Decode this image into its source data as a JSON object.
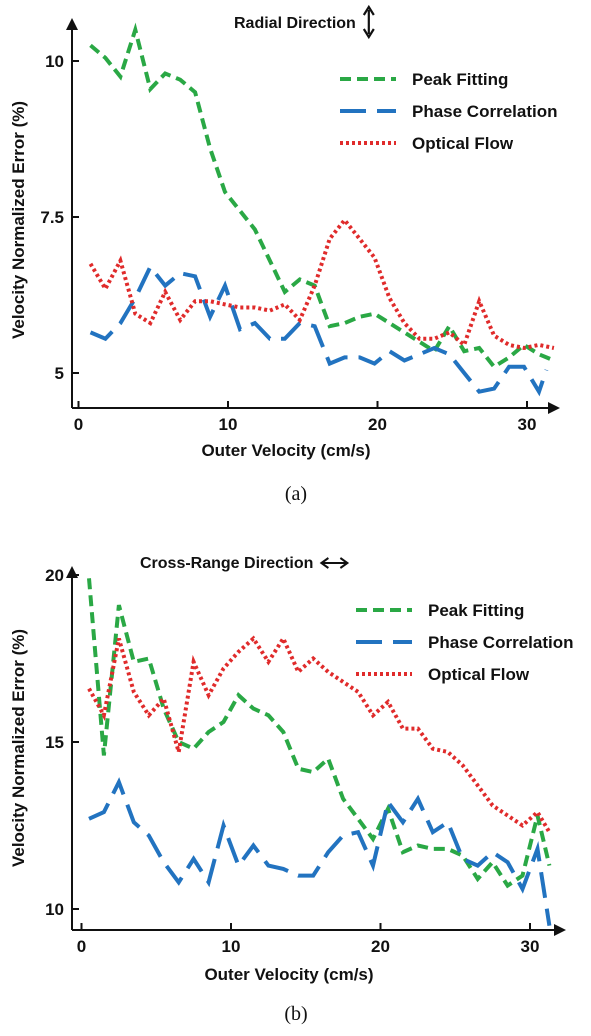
{
  "chart_data": [
    {
      "type": "line",
      "caption": "(a)",
      "title": "Radial Direction",
      "title_arrow": "vertical-double-arrow",
      "xlabel": "Outer Velocity (cm/s)",
      "ylabel": "Velocity Normalized Error (%)",
      "xticks": [
        0,
        10,
        20,
        30
      ],
      "yticks": [
        5,
        7.5,
        10
      ],
      "xtick_labels": [
        "0",
        "10",
        "20",
        "30"
      ],
      "ytick_labels": [
        "5",
        "7.5",
        "10"
      ],
      "xlim": [
        0,
        33.5
      ],
      "ylim": [
        4.3,
        11.0
      ],
      "legend_position": "top-right",
      "grid": false,
      "series": [
        {
          "name": "Peak Fitting",
          "color": "#2aa845",
          "style": "dashed",
          "x": [
            0.8,
            1.8,
            2.8,
            3.8,
            4.8,
            5.8,
            6.8,
            7.8,
            8.8,
            9.8,
            10.8,
            11.8,
            12.8,
            13.8,
            14.8,
            15.8,
            16.8,
            17.8,
            18.8,
            19.8,
            20.8,
            21.8,
            22.8,
            23.8,
            24.8,
            25.8,
            26.8,
            27.8,
            28.8,
            29.8,
            30.8,
            31.8
          ],
          "values": [
            10.25,
            10.05,
            9.75,
            10.5,
            9.55,
            9.8,
            9.7,
            9.5,
            8.6,
            7.9,
            7.6,
            7.3,
            6.8,
            6.3,
            6.5,
            6.4,
            5.75,
            5.8,
            5.9,
            5.95,
            5.8,
            5.65,
            5.5,
            5.35,
            5.75,
            5.35,
            5.4,
            5.1,
            5.25,
            5.45,
            5.3,
            5.2
          ]
        },
        {
          "name": "Phase Correlation",
          "color": "#2273c0",
          "style": "longdash",
          "x": [
            0.8,
            1.8,
            2.8,
            3.8,
            4.8,
            5.8,
            6.8,
            7.8,
            8.8,
            9.8,
            10.8,
            11.8,
            12.8,
            13.8,
            14.8,
            15.8,
            16.8,
            17.8,
            18.8,
            19.8,
            20.8,
            21.8,
            22.8,
            23.8,
            24.8,
            25.8,
            26.8,
            27.8,
            28.8,
            29.8,
            30.8,
            31.3
          ],
          "values": [
            5.65,
            5.55,
            5.8,
            6.2,
            6.7,
            6.4,
            6.6,
            6.55,
            5.9,
            6.4,
            5.7,
            5.8,
            5.55,
            5.55,
            5.8,
            5.75,
            5.15,
            5.25,
            5.25,
            5.15,
            5.35,
            5.2,
            5.3,
            5.4,
            5.3,
            5.0,
            4.7,
            4.75,
            5.1,
            5.1,
            4.7,
            5.05
          ]
        },
        {
          "name": "Optical Flow",
          "color": "#e02b2b",
          "style": "dotted",
          "x": [
            0.8,
            1.8,
            2.8,
            3.8,
            4.8,
            5.8,
            6.8,
            7.8,
            8.8,
            9.8,
            10.8,
            11.8,
            12.8,
            13.8,
            14.8,
            15.8,
            16.8,
            17.8,
            18.8,
            19.8,
            20.8,
            21.8,
            22.8,
            23.8,
            24.8,
            25.8,
            26.8,
            27.8,
            28.8,
            29.8,
            30.8,
            31.8
          ],
          "values": [
            6.75,
            6.35,
            6.8,
            5.95,
            5.8,
            6.3,
            5.85,
            6.15,
            6.15,
            6.1,
            6.05,
            6.05,
            6.0,
            6.1,
            5.85,
            6.4,
            7.15,
            7.45,
            7.15,
            6.85,
            6.2,
            5.8,
            5.55,
            5.55,
            5.65,
            5.45,
            6.15,
            5.6,
            5.45,
            5.4,
            5.45,
            5.4
          ]
        }
      ]
    },
    {
      "type": "line",
      "caption": "(b)",
      "title": "Cross-Range Direction",
      "title_arrow": "horizontal-double-arrow",
      "xlabel": "Outer Velocity (cm/s)",
      "ylabel": "Velocity Normalized Error (%)",
      "xticks": [
        0,
        10,
        20,
        30
      ],
      "yticks": [
        10,
        15,
        20
      ],
      "xtick_labels": [
        "0",
        "10",
        "20",
        "30"
      ],
      "ytick_labels": [
        "10",
        "15",
        "20"
      ],
      "xlim": [
        -0.5,
        32.5
      ],
      "ylim": [
        9.0,
        20.5
      ],
      "legend_position": "top-right",
      "grid": false,
      "series": [
        {
          "name": "Peak Fitting",
          "color": "#2aa845",
          "style": "dashed",
          "x": [
            0.5,
            1.5,
            2.5,
            3.5,
            4.5,
            5.5,
            6.5,
            7.5,
            8.5,
            9.5,
            10.5,
            11.5,
            12.5,
            13.5,
            14.5,
            15.5,
            16.5,
            17.5,
            18.5,
            19.5,
            20.5,
            21.5,
            22.5,
            23.5,
            24.5,
            25.5,
            26.5,
            27.5,
            28.5,
            29.5,
            30.5,
            31.3
          ],
          "values": [
            19.9,
            14.6,
            19.1,
            17.4,
            17.5,
            16.0,
            15.0,
            14.8,
            15.3,
            15.6,
            16.4,
            16.0,
            15.8,
            15.3,
            14.2,
            14.1,
            14.5,
            13.3,
            12.7,
            12.1,
            13.0,
            11.7,
            11.9,
            11.8,
            11.8,
            11.6,
            10.9,
            11.4,
            10.7,
            11.0,
            12.8,
            11.3
          ]
        },
        {
          "name": "Phase Correlation",
          "color": "#2273c0",
          "style": "longdash",
          "x": [
            0.5,
            1.5,
            2.5,
            3.5,
            4.5,
            5.5,
            6.5,
            7.5,
            8.5,
            9.5,
            10.5,
            11.5,
            12.5,
            13.5,
            14.5,
            15.5,
            16.5,
            17.5,
            18.5,
            19.5,
            20.5,
            21.5,
            22.5,
            23.5,
            24.5,
            25.5,
            26.5,
            27.5,
            28.5,
            29.5,
            30.5,
            31.3
          ],
          "values": [
            12.7,
            12.9,
            13.8,
            12.6,
            12.2,
            11.4,
            10.8,
            11.5,
            10.8,
            12.5,
            11.3,
            11.9,
            11.3,
            11.2,
            11.0,
            11.0,
            11.7,
            12.2,
            12.3,
            11.3,
            13.2,
            12.6,
            13.3,
            12.3,
            12.6,
            11.5,
            11.3,
            11.7,
            11.4,
            10.6,
            11.8,
            9.5
          ]
        },
        {
          "name": "Optical Flow",
          "color": "#e02b2b",
          "style": "dotted",
          "x": [
            0.5,
            1.5,
            2.5,
            3.5,
            4.5,
            5.5,
            6.5,
            7.5,
            8.5,
            9.5,
            10.5,
            11.5,
            12.5,
            13.5,
            14.5,
            15.5,
            16.5,
            17.5,
            18.5,
            19.5,
            20.5,
            21.5,
            22.5,
            23.5,
            24.5,
            25.5,
            26.5,
            27.5,
            28.5,
            29.5,
            30.5,
            31.3
          ],
          "values": [
            16.6,
            15.8,
            18.1,
            16.5,
            15.8,
            16.3,
            14.7,
            17.4,
            16.4,
            17.2,
            17.7,
            18.1,
            17.4,
            18.1,
            17.1,
            17.5,
            17.1,
            16.8,
            16.5,
            15.8,
            16.2,
            15.4,
            15.4,
            14.8,
            14.7,
            14.3,
            13.7,
            13.1,
            12.8,
            12.5,
            12.9,
            12.3
          ]
        }
      ]
    }
  ]
}
